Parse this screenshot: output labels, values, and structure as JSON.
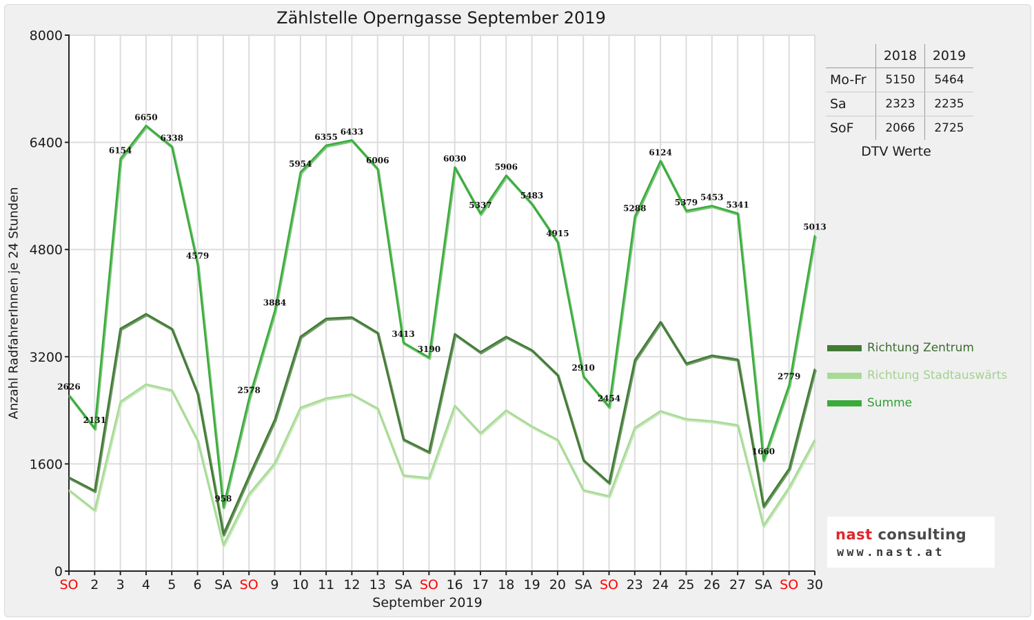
{
  "title": "Zählstelle Operngasse September 2019",
  "colors": {
    "zentrum": "#427a35",
    "stadtauswaerts": "#a8da96",
    "summe": "#3aab3a",
    "weekend_label": "#ff0000",
    "grid": "#dcdcdc",
    "logo_red": "#e0262a",
    "logo_dark": "#4a4a4a"
  },
  "chart_data": {
    "type": "line",
    "title": "Zählstelle Operngasse September 2019",
    "xlabel": "September 2019",
    "ylabel": "Anzahl RadfahrerInnen je 24 Stunden",
    "ylim": [
      0,
      8000
    ],
    "yticks": [
      "0",
      "1600",
      "3200",
      "4800",
      "6400",
      "8000"
    ],
    "grid": true,
    "legend_position": "right",
    "categories": [
      "SO",
      "2",
      "3",
      "4",
      "5",
      "6",
      "SA",
      "SO",
      "9",
      "10",
      "11",
      "12",
      "13",
      "SA",
      "SO",
      "16",
      "17",
      "18",
      "19",
      "20",
      "SA",
      "SO",
      "23",
      "24",
      "25",
      "26",
      "27",
      "SA",
      "SO",
      "30"
    ],
    "weekend_flags": [
      "SO",
      "SA"
    ],
    "series": [
      {
        "name": "Richtung Zentrum",
        "values": [
          1400,
          1200,
          3620,
          3840,
          3620,
          2650,
          550,
          1420,
          2260,
          3500,
          3770,
          3790,
          3560,
          1970,
          1780,
          3540,
          3270,
          3500,
          3300,
          2930,
          1660,
          1320,
          3150,
          3720,
          3100,
          3220,
          3160,
          970,
          1530,
          3020
        ]
      },
      {
        "name": "Richtung Stadtauswärts",
        "values": [
          1210,
          910,
          2530,
          2790,
          2700,
          1950,
          390,
          1150,
          1610,
          2440,
          2580,
          2640,
          2430,
          1430,
          1390,
          2470,
          2060,
          2400,
          2160,
          1960,
          1210,
          1120,
          2140,
          2390,
          2270,
          2240,
          2180,
          680,
          1250,
          1960
        ]
      },
      {
        "name": "Summe",
        "values": [
          2626,
          2131,
          6154,
          6650,
          6338,
          4579,
          958,
          2578,
          3884,
          5954,
          6355,
          6433,
          6006,
          3413,
          3190,
          6030,
          5337,
          5906,
          5483,
          4915,
          2910,
          2454,
          5288,
          6124,
          5379,
          5453,
          5341,
          1660,
          2779,
          5013
        ],
        "data_labels": [
          "2626",
          "2131",
          "6154",
          "6650",
          "6338",
          "4579",
          "958",
          "2578",
          "3884",
          "5954",
          "6355",
          "6433",
          "6006",
          "3413",
          "3190",
          "6030",
          "5337",
          "5906",
          "5483",
          "4915",
          "2910",
          "2454",
          "5288",
          "6124",
          "5379",
          "5453",
          "5341",
          "1660",
          "2779",
          "5013"
        ]
      }
    ]
  },
  "dtv_table": {
    "headers": [
      "",
      "2018",
      "2019"
    ],
    "rows": [
      {
        "label": "Mo-Fr",
        "v2018": "5150",
        "v2019": "5464"
      },
      {
        "label": "Sa",
        "v2018": "2323",
        "v2019": "2235"
      },
      {
        "label": "SoF",
        "v2018": "2066",
        "v2019": "2725"
      }
    ],
    "caption": "DTV Werte"
  },
  "legend": [
    {
      "label": "Richtung Zentrum"
    },
    {
      "label": "Richtung Stadtauswärts"
    },
    {
      "label": "Summe"
    }
  ],
  "logo": {
    "part1": "nast",
    "part2": " consulting",
    "url": "www.nast.at"
  }
}
